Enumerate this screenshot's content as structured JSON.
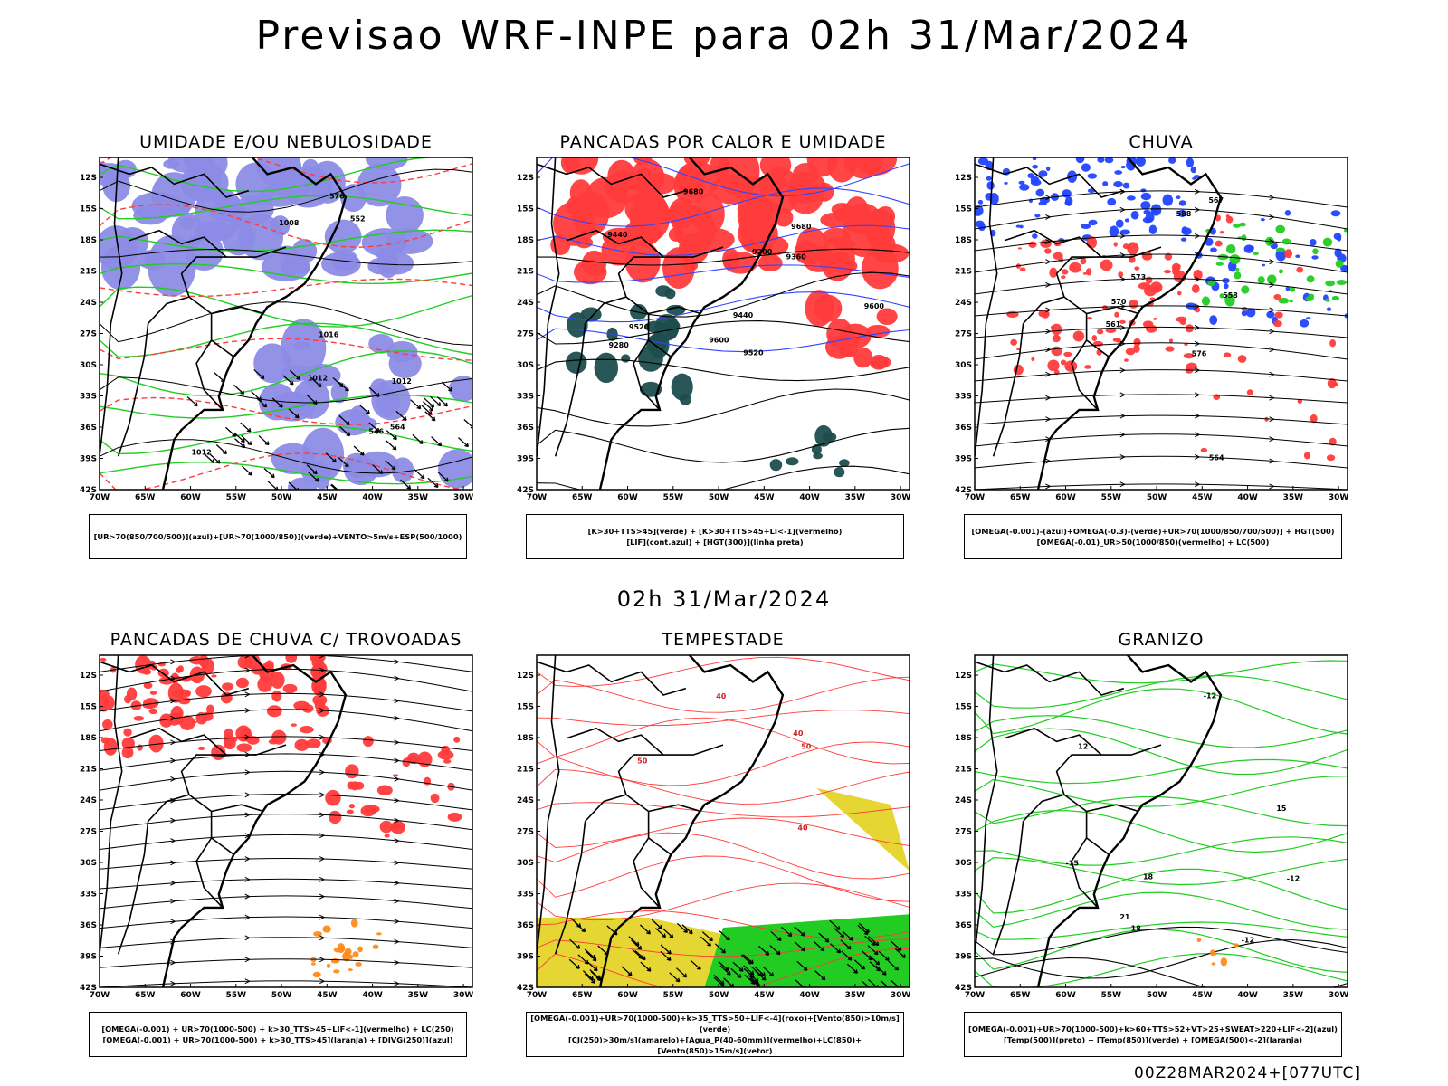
{
  "title": "Previsao WRF-INPE  para 02h 31/Mar/2024",
  "subtitle": "02h 31/Mar/2024",
  "footer": "00Z28MAR2024+[077UTC]",
  "axes": {
    "lat_labels": [
      "12S",
      "15S",
      "18S",
      "21S",
      "24S",
      "27S",
      "30S",
      "33S",
      "36S",
      "39S",
      "42S"
    ],
    "lon_labels": [
      "70W",
      "65W",
      "60W",
      "55W",
      "50W",
      "45W",
      "40W",
      "35W",
      "30W"
    ]
  },
  "colors": {
    "blue_shade": "#8c8ce6",
    "green": "#22cc22",
    "red": "#ff3b3b",
    "dark_teal": "#1d4d4d",
    "orange": "#ff8c1a",
    "yellow": "#e6d634",
    "blue": "#2244ff"
  },
  "panels": [
    {
      "id": "umidade",
      "title": "UMIDADE E/OU NEBULOSIDADE",
      "legend": [
        "[UR>70(850/700/500)](azul)+[UR>70(1000/850)](verde)+VENTO>5m/s+ESP(500/1000)"
      ],
      "contour_labels": [
        "1012",
        "1012",
        "1016",
        "1012",
        "1008",
        "576",
        "564",
        "552",
        "546"
      ]
    },
    {
      "id": "pancadas-calor",
      "title": "PANCADAS POR CALOR E UMIDADE",
      "legend": [
        "[K>30+TTS>45](verde) + [K>30+TTS>45+LI<-1](vermelho)",
        "[LIF](cont.azul) + [HGT(300)](linha preta)"
      ],
      "contour_labels": [
        "9680",
        "9680",
        "9600",
        "9600",
        "9520",
        "9520",
        "9440",
        "9360",
        "9280",
        "9200",
        "9440"
      ]
    },
    {
      "id": "chuva",
      "title": "CHUVA",
      "legend": [
        "[OMEGA(-0.001)-(azul)+OMEGA(-0.3)-(verde)+UR>70(1000/850/700/500)] + HGT(500)",
        "[OMEGA(-0.01)_UR>50(1000/850)(vermelho) + LC(500)"
      ],
      "contour_labels": [
        "588",
        "576",
        "573",
        "570",
        "567",
        "564",
        "561",
        "558"
      ]
    },
    {
      "id": "trovoadas",
      "title": "PANCADAS DE CHUVA C/ TROVOADAS",
      "legend": [
        "[OMEGA(-0.001) + UR>70(1000-500) + k>30_TTS>45+LIF<-1](vermelho) + LC(250)",
        "[OMEGA(-0.001) + UR>70(1000-500) + k>30_TTS>45](laranja) + [DIVG(250)](azul)"
      ],
      "contour_labels": []
    },
    {
      "id": "tempestade",
      "title": "TEMPESTADE",
      "legend": [
        "[OMEGA(-0.001)+UR>70(1000-500)+k>35_TTS>50+LIF<-4](roxo)+[Vento(850)>10m/s](verde)",
        "[CJ(250)>30m/s](amarelo)+[Agua_P(40-60mm)](vermelho)+LC(850)+[Vento(850)>15m/s](vetor)"
      ],
      "contour_labels": [
        "40",
        "40",
        "50",
        "50",
        "40"
      ]
    },
    {
      "id": "granizo",
      "title": "GRANIZO",
      "legend": [
        "[OMEGA(-0.001)+UR>70(1000-500)+k>60+TTS>52+VT>25+SWEAT>220+LIF<-2](azul)",
        "[Temp(500)](preto) + [Temp(850)](verde) + [OMEGA(500)<-2](laranja)"
      ],
      "contour_labels": [
        "-12",
        "-15",
        "-18",
        "-12",
        "-12",
        "21",
        "18",
        "15",
        "12"
      ]
    }
  ]
}
